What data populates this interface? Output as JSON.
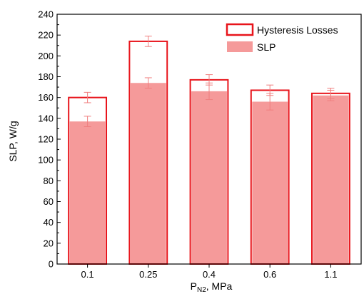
{
  "chart_data": {
    "type": "bar",
    "categories": [
      "0.1",
      "0.25",
      "0.4",
      "0.6",
      "1.1"
    ],
    "series": [
      {
        "name": "Hysteresis Losses",
        "values": [
          160,
          214,
          177,
          167,
          164
        ],
        "error": [
          5,
          5,
          5,
          5,
          5
        ],
        "style": "outline"
      },
      {
        "name": "SLP",
        "values": [
          137,
          174,
          166,
          156,
          162
        ],
        "error": [
          5,
          5,
          8,
          8,
          5
        ],
        "style": "filled"
      }
    ],
    "ylabel": "SLP, W/g",
    "xlabel": {
      "main": "P",
      "subscript": "N2",
      "rest": ", MPa"
    },
    "ylim": [
      0,
      240
    ],
    "yticks": [
      0,
      20,
      40,
      60,
      80,
      100,
      120,
      140,
      160,
      180,
      200,
      220,
      240
    ],
    "grid": false,
    "legend_position": "top-right",
    "colors": {
      "outline": "#e8141b",
      "fill": "#f59a9a",
      "error_bar": "#f07f7f",
      "axis": "#000000"
    }
  }
}
